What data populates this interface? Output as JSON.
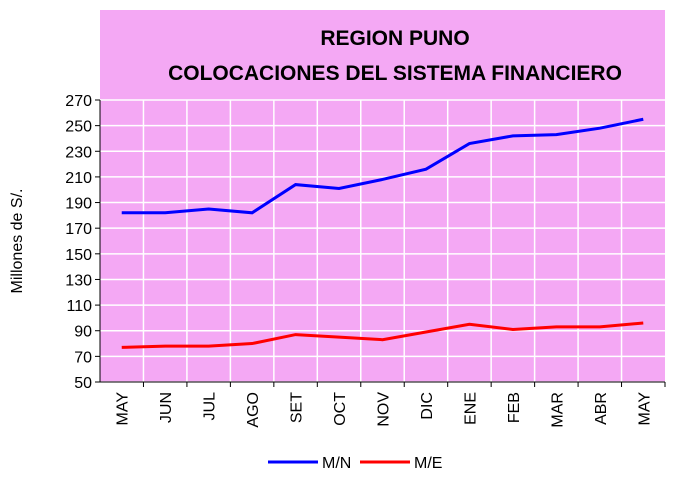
{
  "chart_data": {
    "type": "line",
    "title": [
      "REGION PUNO",
      "COLOCACIONES DEL SISTEMA FINANCIERO"
    ],
    "y_label": "Millones de S/.",
    "categories": [
      "MAY",
      "JUN",
      "JUL",
      "AGO",
      "SET",
      "OCT",
      "NOV",
      "DIC",
      "ENE",
      "FEB",
      "MAR",
      "ABR",
      "MAY"
    ],
    "series": [
      {
        "name": "M/N",
        "color": "#0000ff",
        "values": [
          182,
          182,
          185,
          182,
          204,
          201,
          208,
          216,
          236,
          242,
          243,
          248,
          255
        ]
      },
      {
        "name": "M/E",
        "color": "#ff0000",
        "values": [
          77,
          78,
          78,
          80,
          87,
          85,
          83,
          89,
          95,
          91,
          93,
          93,
          96
        ]
      }
    ],
    "ylim": [
      50,
      270
    ],
    "yticks": [
      50,
      70,
      90,
      110,
      130,
      150,
      170,
      190,
      210,
      230,
      250,
      270
    ],
    "grid": true,
    "legend": "bottom"
  }
}
